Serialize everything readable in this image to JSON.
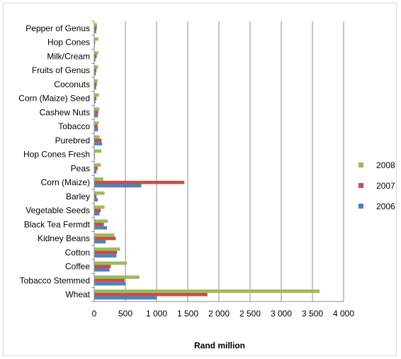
{
  "chart_data": {
    "type": "bar",
    "orientation": "horizontal",
    "categories": [
      "Pepper of Genus",
      "Hop Cones",
      "Milk/Cream",
      "Fruits of Genus",
      "Coconuts",
      "Corn (Maize) Seed",
      "Cashew Nuts",
      "Tobacco",
      "Purebred",
      "Hop Cones Fresh",
      "Peas",
      "Corn (Maize)",
      "Barley",
      "Vegetable Seeds",
      "Black Tea Fermdt",
      "Kidney Beans",
      "Cotton",
      "Coffee",
      "Tobacco Stemmed",
      "Wheat"
    ],
    "series": [
      {
        "name": "2008",
        "color": "#9bbb59",
        "values": [
          40,
          60,
          60,
          55,
          50,
          70,
          75,
          65,
          80,
          110,
          100,
          140,
          160,
          160,
          210,
          320,
          410,
          520,
          720,
          3610
        ]
      },
      {
        "name": "2007",
        "color": "#c0504d",
        "values": [
          35,
          10,
          35,
          30,
          35,
          30,
          60,
          50,
          110,
          5,
          50,
          1440,
          30,
          100,
          150,
          340,
          360,
          260,
          480,
          1810
        ]
      },
      {
        "name": "2006",
        "color": "#4f81bd",
        "values": [
          25,
          5,
          15,
          20,
          25,
          15,
          55,
          55,
          120,
          5,
          30,
          750,
          50,
          80,
          200,
          180,
          350,
          240,
          490,
          1000
        ]
      }
    ],
    "xlabel": "Rand million",
    "ylabel": "",
    "xlim": [
      0,
      4000
    ],
    "x_ticks": [
      "0",
      "500",
      "1 000",
      "1 500",
      "2 000",
      "2 500",
      "3 000",
      "3 500",
      "4 000"
    ],
    "grid": "vertical",
    "legend_position": "right",
    "legend_order": [
      "2008",
      "2007",
      "2006"
    ]
  }
}
